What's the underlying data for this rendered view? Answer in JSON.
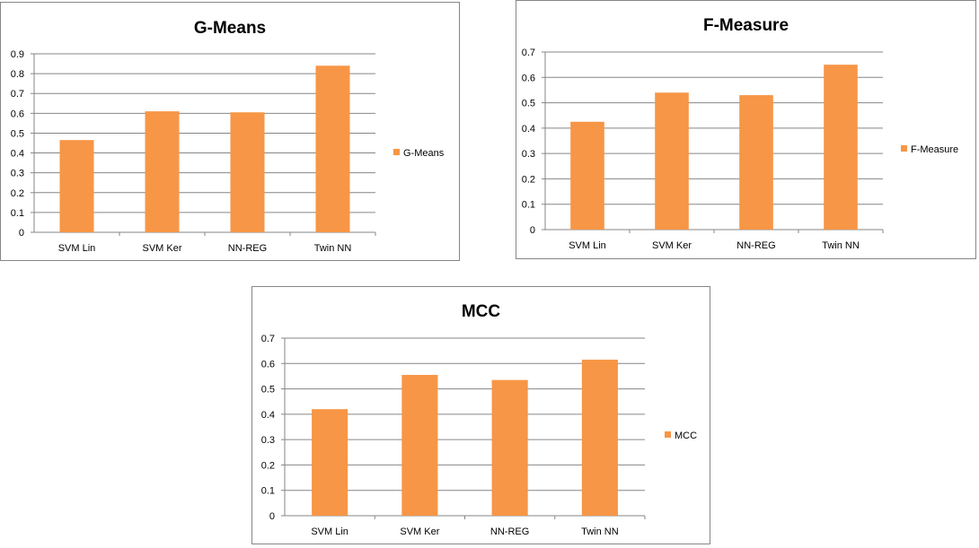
{
  "colors": {
    "bar": "#F79646",
    "grid": "#868686",
    "axis": "#868686",
    "text": "#000000"
  },
  "chart_data": [
    {
      "type": "bar",
      "title": "G-Means",
      "categories": [
        "SVM Lin",
        "SVM Ker",
        "NN-REG",
        "Twin NN"
      ],
      "series": [
        {
          "name": "G-Means",
          "values": [
            0.465,
            0.61,
            0.605,
            0.84
          ]
        }
      ],
      "ylim": [
        0,
        0.9
      ],
      "yticks": [
        "0",
        "0.1",
        "0.2",
        "0.3",
        "0.4",
        "0.5",
        "0.6",
        "0.7",
        "0.8",
        "0.9"
      ],
      "grid": true,
      "legend": "right"
    },
    {
      "type": "bar",
      "title": "F-Measure",
      "categories": [
        "SVM Lin",
        "SVM Ker",
        "NN-REG",
        "Twin NN"
      ],
      "series": [
        {
          "name": "F-Measure",
          "values": [
            0.425,
            0.54,
            0.53,
            0.65
          ]
        }
      ],
      "ylim": [
        0,
        0.7
      ],
      "yticks": [
        "0",
        "0.1",
        "0.2",
        "0.3",
        "0.4",
        "0.5",
        "0.6",
        "0.7"
      ],
      "grid": true,
      "legend": "right"
    },
    {
      "type": "bar",
      "title": "MCC",
      "categories": [
        "SVM Lin",
        "SVM Ker",
        "NN-REG",
        "Twin NN"
      ],
      "series": [
        {
          "name": "MCC",
          "values": [
            0.42,
            0.555,
            0.535,
            0.615
          ]
        }
      ],
      "ylim": [
        0,
        0.7
      ],
      "yticks": [
        "0",
        "0.1",
        "0.2",
        "0.3",
        "0.4",
        "0.5",
        "0.6",
        "0.7"
      ],
      "grid": true,
      "legend": "right"
    }
  ]
}
